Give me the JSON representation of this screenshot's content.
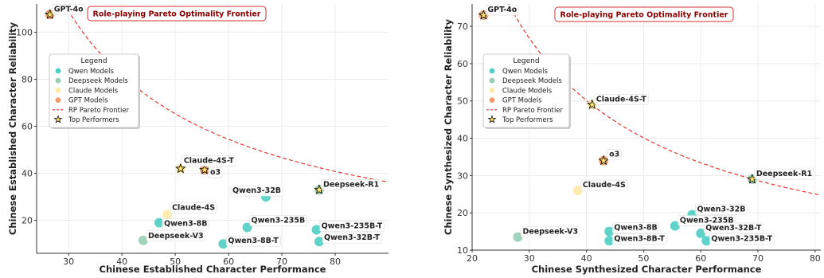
{
  "colors": {
    "qwen": "#4ecdc4",
    "deepseek": "#96ceb4",
    "claude": "#ffeaa7",
    "gpt": "#f39c6b",
    "frontier": "#e53935",
    "title_text": "#8b0000"
  },
  "legend": {
    "title": "Legend",
    "items": [
      {
        "label": "Qwen Models",
        "kind": "dot",
        "color": "#4ecdc4"
      },
      {
        "label": "Deepseek Models",
        "kind": "dot",
        "color": "#96ceb4"
      },
      {
        "label": "Claude Models",
        "kind": "dot",
        "color": "#ffeaa7"
      },
      {
        "label": "GPT Models",
        "kind": "dot",
        "color": "#f39c6b"
      },
      {
        "label": "RP Pareto Frontier",
        "kind": "line",
        "color": "#e53935"
      },
      {
        "label": "Top Performers",
        "kind": "star",
        "color": "#ffe066"
      }
    ]
  },
  "chart_data": [
    {
      "type": "scatter",
      "title": "Role-playing Pareto Optimality Frontier",
      "xlabel": "Chinese Established Character Performance",
      "ylabel": "Chinese Established Character Reliability",
      "xlim": [
        24,
        90
      ],
      "ylim": [
        6,
        112
      ],
      "xticks": [
        30,
        40,
        50,
        60,
        70,
        80
      ],
      "yticks": [
        20,
        40,
        60,
        80,
        100
      ],
      "grid": true,
      "legend_position": "upper-left",
      "frontier_k": 3267,
      "points": [
        {
          "label": "GPT-4o",
          "x": 26.5,
          "y": 107.5,
          "family": "gpt",
          "top": true
        },
        {
          "label": "Claude-4S-T",
          "x": 51,
          "y": 42,
          "family": "claude",
          "top": true
        },
        {
          "label": "o3",
          "x": 55.5,
          "y": 41.5,
          "family": "gpt",
          "top": true
        },
        {
          "label": "Qwen3-32B",
          "x": 67,
          "y": 30,
          "family": "qwen",
          "top": false
        },
        {
          "label": "Deepseek-R1",
          "x": 77,
          "y": 33,
          "family": "deepseek",
          "top": true
        },
        {
          "label": "Claude-4S",
          "x": 48.5,
          "y": 22.5,
          "family": "claude",
          "top": false
        },
        {
          "label": "Qwen3-8B",
          "x": 47,
          "y": 19,
          "family": "qwen",
          "top": false
        },
        {
          "label": "Deepseek-V3",
          "x": 44,
          "y": 11.5,
          "family": "deepseek",
          "top": false
        },
        {
          "label": "Qwen3-235B",
          "x": 63.5,
          "y": 17,
          "family": "qwen",
          "top": false
        },
        {
          "label": "Qwen3-8B-T",
          "x": 59,
          "y": 10,
          "family": "qwen",
          "top": false
        },
        {
          "label": "Qwen3-235B-T",
          "x": 76.5,
          "y": 16,
          "family": "qwen",
          "top": false
        },
        {
          "label": "Qwen3-32B-T",
          "x": 77,
          "y": 11,
          "family": "qwen",
          "top": false
        }
      ]
    },
    {
      "type": "scatter",
      "title": "Role-playing Pareto Optimality Frontier",
      "xlabel": "Chinese Synthesized Character Performance",
      "ylabel": "Chinese Synthesized Character Reliability",
      "xlim": [
        20,
        81
      ],
      "ylim": [
        10,
        76
      ],
      "xticks": [
        20,
        30,
        40,
        50,
        60,
        70,
        80
      ],
      "yticks": [
        10,
        20,
        30,
        40,
        50,
        60,
        70
      ],
      "grid": true,
      "legend_position": "upper-left",
      "frontier_k": 2005,
      "points": [
        {
          "label": "GPT-4o",
          "x": 22,
          "y": 73,
          "family": "gpt",
          "top": true
        },
        {
          "label": "Claude-4S-T",
          "x": 41,
          "y": 49,
          "family": "claude",
          "top": true
        },
        {
          "label": "o3",
          "x": 43,
          "y": 34,
          "family": "gpt",
          "top": true
        },
        {
          "label": "Deepseek-R1",
          "x": 69,
          "y": 29,
          "family": "deepseek",
          "top": true
        },
        {
          "label": "Claude-4S",
          "x": 38.5,
          "y": 26,
          "family": "claude",
          "top": false
        },
        {
          "label": "Qwen3-32B",
          "x": 58.5,
          "y": 19.5,
          "family": "qwen",
          "top": false
        },
        {
          "label": "Qwen3-235B",
          "x": 55.5,
          "y": 16.5,
          "family": "qwen",
          "top": false
        },
        {
          "label": "Qwen3-32B-T",
          "x": 60,
          "y": 14.5,
          "family": "qwen",
          "top": false
        },
        {
          "label": "Qwen3-235B-T",
          "x": 61,
          "y": 12.5,
          "family": "qwen",
          "top": false
        },
        {
          "label": "Qwen3-8B",
          "x": 44,
          "y": 15,
          "family": "qwen",
          "top": false
        },
        {
          "label": "Qwen3-8B-T",
          "x": 44,
          "y": 12.5,
          "family": "qwen",
          "top": false
        },
        {
          "label": "Deepseek-V3",
          "x": 28,
          "y": 13.5,
          "family": "deepseek",
          "top": false
        }
      ]
    }
  ]
}
